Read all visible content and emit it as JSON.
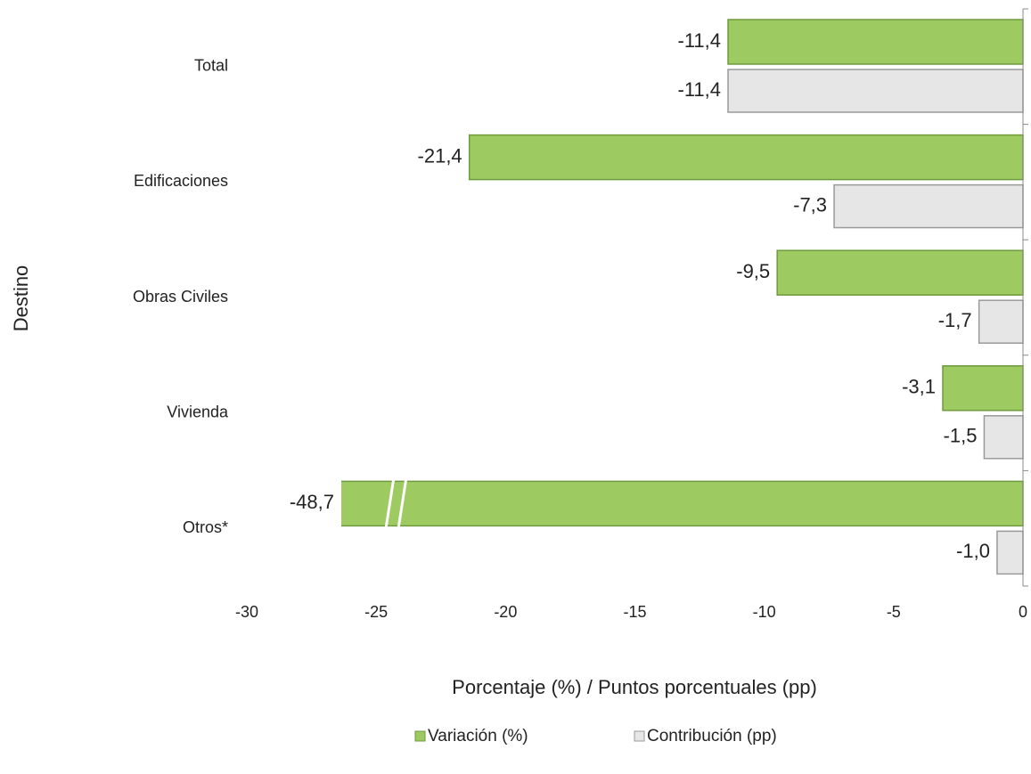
{
  "chart_data": {
    "type": "hbar",
    "categories": [
      "Total",
      "Edificaciones",
      "Obras Civiles",
      "Vivienda",
      "Otros*"
    ],
    "series": [
      {
        "name": "Variación (%)",
        "color": "#9dcb62",
        "values": [
          -11.4,
          -21.4,
          -9.5,
          -3.1,
          -48.7
        ],
        "value_labels": [
          "-11,4",
          "-21,4",
          "-9,5",
          "-3,1",
          "-48,7"
        ]
      },
      {
        "name": "Contribución (pp)",
        "color": "#e6e6e6",
        "values": [
          -11.4,
          -7.3,
          -1.7,
          -1.5,
          -1.0
        ],
        "value_labels": [
          "-11,4",
          "-7,3",
          "-1,7",
          "-1,5",
          "-1,0"
        ]
      }
    ],
    "xlim": [
      -30,
      0
    ],
    "xticks": [
      -30,
      -25,
      -20,
      -15,
      -10,
      -5,
      0
    ],
    "xlabel": "Porcentaje (%) / Puntos porcentuales (pp)",
    "ylabel": "Destino",
    "legend": "bottom"
  }
}
